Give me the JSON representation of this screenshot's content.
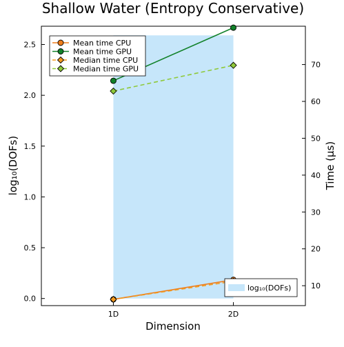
{
  "chart_data": {
    "type": "line",
    "title": "Shallow Water (Entropy Conservative)",
    "xlabel": "Dimension",
    "ylabel_left": "log₁₀(DOFs)",
    "ylabel_right": "Time (µs)",
    "categories": [
      "1D",
      "2D"
    ],
    "x_range": [
      0.4,
      2.6
    ],
    "ylim_left": [
      -0.07,
      2.68
    ],
    "ylim_right": [
      4.6,
      80.4
    ],
    "yticks_left": [
      "0.0",
      "0.5",
      "1.0",
      "1.5",
      "2.0",
      "2.5"
    ],
    "yticks_left_values": [
      0,
      0.5,
      1,
      1.5,
      2,
      2.5
    ],
    "yticks_right": [
      "10",
      "20",
      "30",
      "40",
      "50",
      "60",
      "70"
    ],
    "yticks_right_values": [
      10,
      20,
      30,
      40,
      50,
      60,
      70
    ],
    "grid": false,
    "bar_series": {
      "name": "log₁₀(DOFs)",
      "axis": "left",
      "values": [
        2.59,
        2.59
      ],
      "color": "#c6e6fa"
    },
    "series": [
      {
        "name": "Mean time CPU",
        "axis": "right",
        "values": [
          6.3,
          11.6
        ],
        "color": "#ee7d1b",
        "dash": false,
        "marker": "circle"
      },
      {
        "name": "Mean time GPU",
        "axis": "right",
        "values": [
          65.6,
          80.0
        ],
        "color": "#12822a",
        "dash": false,
        "marker": "circle"
      },
      {
        "name": "Median time CPU",
        "axis": "right",
        "values": [
          6.3,
          11.2
        ],
        "color": "#f39a1e",
        "dash": true,
        "marker": "diamond"
      },
      {
        "name": "Median time GPU",
        "axis": "right",
        "values": [
          62.8,
          69.8
        ],
        "color": "#8fc93a",
        "dash": true,
        "marker": "diamond"
      }
    ],
    "legend_lines_placement": "top-left",
    "legend_bar_placement": "bottom-right"
  }
}
